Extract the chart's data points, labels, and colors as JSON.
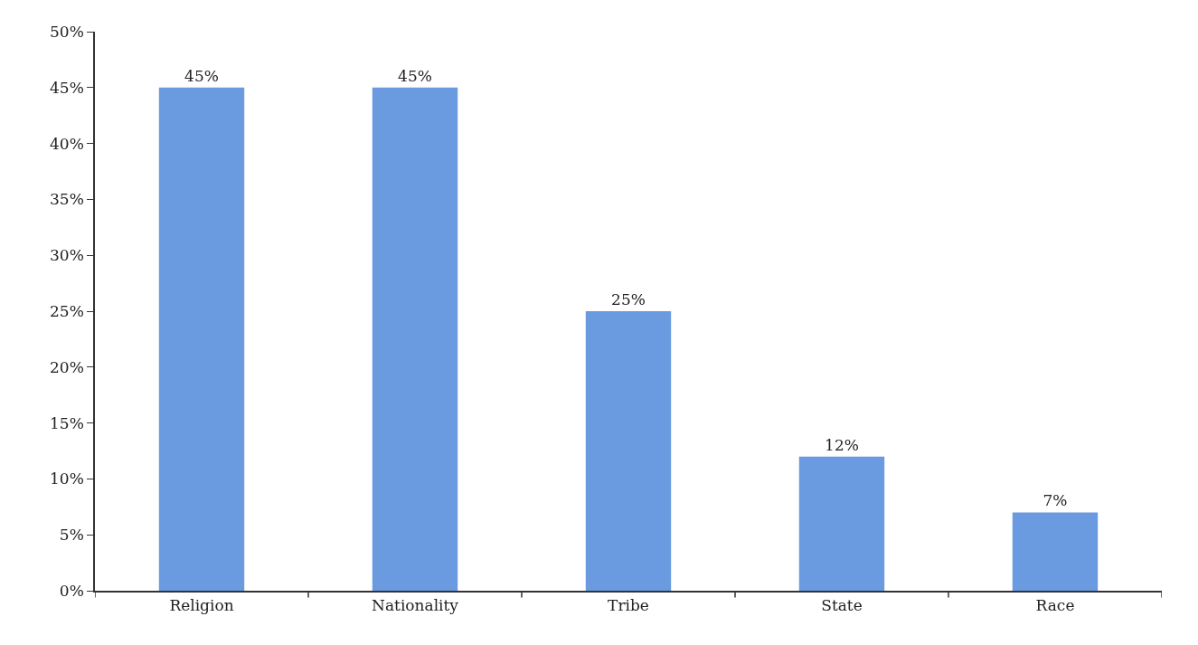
{
  "chart_data": {
    "type": "bar",
    "categories": [
      "Religion",
      "Nationality",
      "Tribe",
      "State",
      "Race"
    ],
    "values": [
      45,
      45,
      25,
      12,
      7
    ],
    "value_labels": [
      "45%",
      "45%",
      "25%",
      "12%",
      "7%"
    ],
    "color": "#6a9be0",
    "ylim": [
      0,
      50
    ],
    "yticks": [
      {
        "value": 0,
        "label": "0%"
      },
      {
        "value": 5,
        "label": "5%"
      },
      {
        "value": 10,
        "label": "10%"
      },
      {
        "value": 15,
        "label": "15%"
      },
      {
        "value": 20,
        "label": "20%"
      },
      {
        "value": 25,
        "label": "25%"
      },
      {
        "value": 30,
        "label": "30%"
      },
      {
        "value": 35,
        "label": "35%"
      },
      {
        "value": 40,
        "label": "40%"
      },
      {
        "value": 45,
        "label": "45%"
      },
      {
        "value": 50,
        "label": "50%"
      }
    ],
    "legend": false
  }
}
